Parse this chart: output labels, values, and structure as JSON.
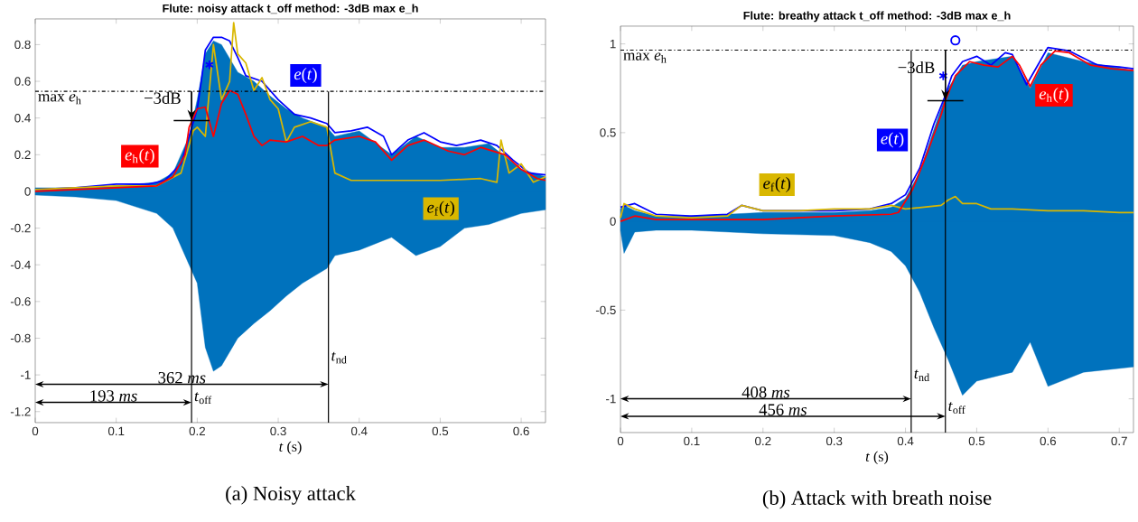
{
  "chart_data": [
    {
      "type": "line",
      "title": "Flute: noisy attack   t_off method: -3dB max e_h",
      "xlabel": "*t* (s)",
      "xlim": [
        0,
        0.63
      ],
      "ylim": [
        -1.26,
        0.94
      ],
      "xticks": [
        0,
        0.1,
        0.2,
        0.3,
        0.4,
        0.5,
        0.6
      ],
      "yticks": [
        -1.2,
        -1,
        -0.8,
        -0.6,
        -0.4,
        -0.2,
        0,
        0.2,
        0.4,
        0.6,
        0.8
      ],
      "series": [
        {
          "type": "area",
          "color": "#0072bd",
          "x": [
            0,
            0.05,
            0.1,
            0.15,
            0.17,
            0.19,
            0.2,
            0.21,
            0.22,
            0.23,
            0.25,
            0.27,
            0.29,
            0.31,
            0.33,
            0.36,
            0.37,
            0.4,
            0.44,
            0.47,
            0.5,
            0.53,
            0.56,
            0.6,
            0.63
          ],
          "values": [
            0.02,
            0.02,
            0.03,
            0.05,
            0.1,
            0.3,
            0.5,
            0.75,
            0.82,
            0.8,
            0.65,
            0.6,
            0.52,
            0.45,
            0.4,
            0.35,
            0.3,
            0.33,
            0.2,
            0.3,
            0.24,
            0.24,
            0.26,
            0.12,
            0.08
          ]
        },
        {
          "type": "area",
          "color": "#0072bd",
          "x": [
            0,
            0.05,
            0.1,
            0.15,
            0.17,
            0.19,
            0.2,
            0.21,
            0.22,
            0.23,
            0.25,
            0.27,
            0.29,
            0.31,
            0.33,
            0.36,
            0.37,
            0.4,
            0.44,
            0.47,
            0.5,
            0.53,
            0.56,
            0.6,
            0.63
          ],
          "values": [
            -0.02,
            -0.03,
            -0.05,
            -0.12,
            -0.2,
            -0.4,
            -0.5,
            -0.85,
            -0.98,
            -0.95,
            -0.8,
            -0.72,
            -0.65,
            -0.57,
            -0.5,
            -0.42,
            -0.35,
            -0.32,
            -0.25,
            -0.35,
            -0.3,
            -0.2,
            -0.18,
            -0.12,
            -0.1
          ]
        },
        {
          "name": "*e*(*t*)",
          "color": "#0000ff",
          "x": [
            0,
            0.05,
            0.1,
            0.14,
            0.16,
            0.18,
            0.19,
            0.2,
            0.205,
            0.21,
            0.22,
            0.23,
            0.24,
            0.25,
            0.26,
            0.28,
            0.3,
            0.32,
            0.34,
            0.36,
            0.37,
            0.39,
            0.41,
            0.43,
            0.44,
            0.46,
            0.48,
            0.5,
            0.52,
            0.55,
            0.57,
            0.59,
            0.61,
            0.63
          ],
          "values": [
            0.01,
            0.02,
            0.04,
            0.04,
            0.06,
            0.15,
            0.3,
            0.45,
            0.6,
            0.77,
            0.84,
            0.84,
            0.82,
            0.73,
            0.63,
            0.6,
            0.5,
            0.42,
            0.4,
            0.37,
            0.32,
            0.33,
            0.35,
            0.3,
            0.2,
            0.28,
            0.32,
            0.27,
            0.25,
            0.28,
            0.25,
            0.17,
            0.1,
            0.09
          ]
        },
        {
          "name": "*e*$_{f}$(*t*)",
          "color": "#d9b700",
          "x": [
            0,
            0.05,
            0.1,
            0.15,
            0.18,
            0.195,
            0.2,
            0.21,
            0.22,
            0.23,
            0.24,
            0.245,
            0.25,
            0.26,
            0.27,
            0.28,
            0.29,
            0.3,
            0.31,
            0.32,
            0.34,
            0.36,
            0.37,
            0.39,
            0.45,
            0.5,
            0.55,
            0.57,
            0.575,
            0.585,
            0.6,
            0.615,
            0.63
          ],
          "values": [
            0.01,
            0.02,
            0.03,
            0.03,
            0.1,
            0.33,
            0.35,
            0.3,
            0.8,
            0.5,
            0.6,
            0.92,
            0.75,
            0.7,
            0.55,
            0.62,
            0.5,
            0.45,
            0.27,
            0.35,
            0.38,
            0.35,
            0.1,
            0.06,
            0.06,
            0.06,
            0.07,
            0.05,
            0.28,
            0.1,
            0.15,
            0.05,
            0.08
          ]
        },
        {
          "name": "*e*$_{h}$(*t*)",
          "color": "#ff0000",
          "x": [
            0,
            0.05,
            0.1,
            0.15,
            0.17,
            0.185,
            0.19,
            0.2,
            0.21,
            0.22,
            0.23,
            0.24,
            0.25,
            0.26,
            0.27,
            0.28,
            0.29,
            0.31,
            0.33,
            0.35,
            0.36,
            0.37,
            0.4,
            0.42,
            0.44,
            0.46,
            0.48,
            0.51,
            0.53,
            0.55,
            0.58,
            0.6,
            0.62,
            0.63
          ],
          "values": [
            0,
            0.01,
            0.02,
            0.03,
            0.08,
            0.2,
            0.35,
            0.45,
            0.46,
            0.3,
            0.48,
            0.55,
            0.53,
            0.42,
            0.3,
            0.25,
            0.28,
            0.27,
            0.3,
            0.25,
            0.25,
            0.28,
            0.3,
            0.27,
            0.17,
            0.25,
            0.28,
            0.22,
            0.2,
            0.24,
            0.2,
            0.12,
            0.07,
            0.06
          ]
        },
        {
          "type": "scatter",
          "marker": "cross",
          "color": "#0000ff",
          "x": [
            0.215
          ],
          "values": [
            0.69
          ]
        }
      ],
      "ref_lines": [
        {
          "axis": "y",
          "value": 0.545,
          "label": "max *e*$_{h}$",
          "line_style": "dashdot"
        },
        {
          "axis": "x",
          "value": 0.193,
          "label": "*t*$_{off}$"
        },
        {
          "axis": "x",
          "value": 0.362,
          "label": "*t*$_{nd}$"
        }
      ],
      "annotations": [
        {
          "text": "−3dB",
          "x": 0.193,
          "y": 0.386
        },
        "362 *ms*",
        "193 *ms*",
        "(a) Noisy attack"
      ]
    },
    {
      "type": "line",
      "title": "Flute: breathy attack   t_off method: -3dB max e_h",
      "xlabel": "*t* (s)",
      "xlim": [
        0,
        0.72
      ],
      "ylim": [
        -1.19,
        1.1
      ],
      "xticks": [
        0,
        0.1,
        0.2,
        0.3,
        0.4,
        0.5,
        0.6,
        0.7
      ],
      "yticks": [
        -1,
        -0.5,
        0,
        0.5,
        1
      ],
      "series": [
        {
          "type": "area",
          "color": "#0072bd",
          "x": [
            0,
            0.005,
            0.02,
            0.05,
            0.1,
            0.2,
            0.3,
            0.35,
            0.38,
            0.4,
            0.42,
            0.44,
            0.46,
            0.48,
            0.5,
            0.55,
            0.575,
            0.6,
            0.65,
            0.72
          ],
          "values": [
            0.07,
            0.09,
            0.06,
            0.03,
            0.03,
            0.05,
            0.05,
            0.06,
            0.08,
            0.13,
            0.28,
            0.52,
            0.75,
            0.88,
            0.9,
            0.93,
            0.75,
            0.95,
            0.9,
            0.85
          ]
        },
        {
          "type": "area",
          "color": "#0072bd",
          "x": [
            0,
            0.005,
            0.02,
            0.05,
            0.1,
            0.2,
            0.3,
            0.35,
            0.38,
            0.4,
            0.42,
            0.44,
            0.46,
            0.48,
            0.5,
            0.55,
            0.575,
            0.6,
            0.65,
            0.72
          ],
          "values": [
            -0.05,
            -0.18,
            -0.06,
            -0.05,
            -0.05,
            -0.07,
            -0.08,
            -0.12,
            -0.17,
            -0.25,
            -0.4,
            -0.6,
            -0.78,
            -0.98,
            -0.9,
            -0.85,
            -0.68,
            -0.93,
            -0.85,
            -0.82
          ]
        },
        {
          "name": "*e*(*t*)",
          "color": "#0000ff",
          "x": [
            0,
            0.02,
            0.05,
            0.1,
            0.15,
            0.17,
            0.2,
            0.25,
            0.3,
            0.35,
            0.38,
            0.4,
            0.42,
            0.44,
            0.455,
            0.465,
            0.48,
            0.5,
            0.52,
            0.54,
            0.55,
            0.57,
            0.6,
            0.63,
            0.67,
            0.7,
            0.72
          ],
          "values": [
            0.08,
            0.1,
            0.04,
            0.03,
            0.04,
            0.09,
            0.06,
            0.06,
            0.06,
            0.07,
            0.1,
            0.15,
            0.3,
            0.55,
            0.7,
            0.82,
            0.9,
            0.93,
            0.88,
            0.95,
            0.94,
            0.77,
            0.98,
            0.96,
            0.88,
            0.87,
            0.86
          ]
        },
        {
          "name": "*e*$_{f}$(*t*)",
          "color": "#d9b700",
          "x": [
            0,
            0.005,
            0.02,
            0.05,
            0.1,
            0.15,
            0.17,
            0.2,
            0.25,
            0.3,
            0.35,
            0.38,
            0.4,
            0.45,
            0.46,
            0.47,
            0.48,
            0.5,
            0.52,
            0.55,
            0.6,
            0.65,
            0.7,
            0.72
          ],
          "values": [
            0.02,
            0.1,
            0.07,
            0.03,
            0.02,
            0.03,
            0.09,
            0.06,
            0.06,
            0.07,
            0.07,
            0.09,
            0.07,
            0.09,
            0.12,
            0.14,
            0.1,
            0.1,
            0.07,
            0.07,
            0.06,
            0.06,
            0.05,
            0.05
          ]
        },
        {
          "name": "*e*$_{h}$(*t*)",
          "color": "#ff0000",
          "x": [
            0,
            0.02,
            0.05,
            0.1,
            0.15,
            0.2,
            0.25,
            0.3,
            0.38,
            0.39,
            0.41,
            0.43,
            0.45,
            0.456,
            0.47,
            0.49,
            0.51,
            0.53,
            0.55,
            0.56,
            0.575,
            0.59,
            0.61,
            0.63,
            0.66,
            0.69,
            0.72
          ],
          "values": [
            0,
            0.03,
            0.01,
            0.01,
            0.01,
            0.01,
            0.02,
            0.03,
            0.04,
            0.05,
            0.18,
            0.38,
            0.6,
            0.68,
            0.82,
            0.9,
            0.88,
            0.87,
            0.93,
            0.88,
            0.76,
            0.88,
            0.96,
            0.95,
            0.88,
            0.86,
            0.85
          ]
        },
        {
          "type": "scatter",
          "marker": "cross",
          "color": "#0000ff",
          "x": [
            0.453
          ],
          "values": [
            0.82
          ]
        },
        {
          "type": "scatter",
          "marker": "circle",
          "color": "#0000ff",
          "x": [
            0.47
          ],
          "values": [
            1.02
          ]
        }
      ],
      "ref_lines": [
        {
          "axis": "y",
          "value": 0.965,
          "label": "max *e*$_{h}$",
          "line_style": "dashdot"
        },
        {
          "axis": "x",
          "value": 0.408,
          "label": "*t*$_{nd}$"
        },
        {
          "axis": "x",
          "value": 0.456,
          "label": "*t*$_{off}$"
        }
      ],
      "annotations": [
        {
          "text": "−3dB",
          "x": 0.456,
          "y": 0.68
        },
        "408 *ms*",
        "456 *ms*",
        "(b) Attack with breath noise"
      ]
    }
  ]
}
